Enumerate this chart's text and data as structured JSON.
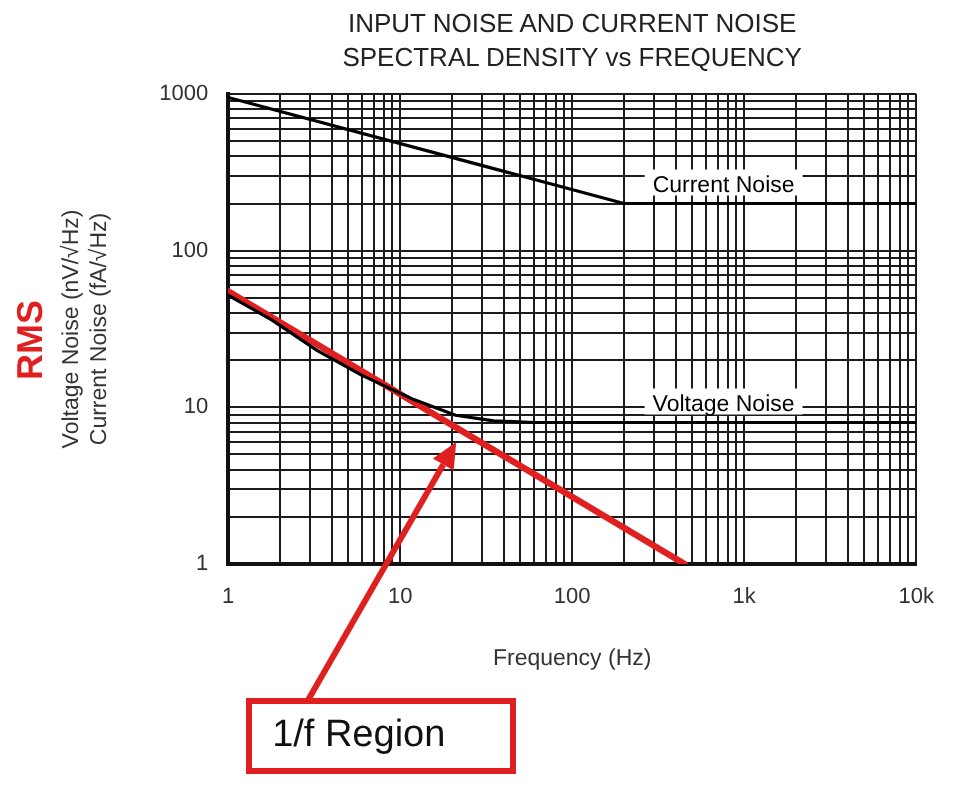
{
  "chart_data": {
    "type": "line",
    "title": "INPUT NOISE AND CURRENT NOISE\nSPECTRAL DENSITY vs FREQUENCY",
    "xlabel": "Frequency (Hz)",
    "ylabel": "Voltage Noise (nV/√Hz)\nCurrent Noise (fA/√Hz)",
    "log": "xy",
    "xlim": [
      1,
      10000
    ],
    "ylim": [
      1,
      1000
    ],
    "xticks": [
      1,
      {
        "value": 2,
        "label": null
      },
      {
        "value": 3,
        "label": null
      },
      {
        "value": 4,
        "label": null
      },
      {
        "value": 5,
        "label": null
      },
      {
        "value": 6,
        "label": null
      },
      {
        "value": 7,
        "label": null
      },
      {
        "value": 8,
        "label": null
      },
      {
        "value": 9,
        "label": null
      },
      10,
      {
        "value": 20,
        "label": null
      },
      {
        "value": 30,
        "label": null
      },
      {
        "value": 40,
        "label": null
      },
      {
        "value": 50,
        "label": null
      },
      {
        "value": 60,
        "label": null
      },
      {
        "value": 70,
        "label": null
      },
      {
        "value": 80,
        "label": null
      },
      {
        "value": 90,
        "label": null
      },
      100,
      {
        "value": 200,
        "label": null
      },
      {
        "value": 300,
        "label": null
      },
      {
        "value": 400,
        "label": null
      },
      {
        "value": 500,
        "label": null
      },
      {
        "value": 600,
        "label": null
      },
      {
        "value": 700,
        "label": null
      },
      {
        "value": 800,
        "label": null
      },
      {
        "value": 900,
        "label": null
      },
      {
        "value": 1000,
        "label": "1k"
      },
      {
        "value": 2000,
        "label": null
      },
      {
        "value": 3000,
        "label": null
      },
      {
        "value": 4000,
        "label": null
      },
      {
        "value": 5000,
        "label": null
      },
      {
        "value": 6000,
        "label": null
      },
      {
        "value": 7000,
        "label": null
      },
      {
        "value": 8000,
        "label": null
      },
      {
        "value": 9000,
        "label": null
      },
      {
        "value": 10000,
        "label": "10k"
      }
    ],
    "yticks": [
      1,
      {
        "value": 2,
        "label": null
      },
      {
        "value": 3,
        "label": null
      },
      {
        "value": 4,
        "label": null
      },
      {
        "value": 5,
        "label": null
      },
      {
        "value": 6,
        "label": null
      },
      {
        "value": 7,
        "label": null
      },
      {
        "value": 8,
        "label": null
      },
      {
        "value": 9,
        "label": null
      },
      10,
      {
        "value": 20,
        "label": null
      },
      {
        "value": 30,
        "label": null
      },
      {
        "value": 40,
        "label": null
      },
      {
        "value": 50,
        "label": null
      },
      {
        "value": 60,
        "label": null
      },
      {
        "value": 70,
        "label": null
      },
      {
        "value": 80,
        "label": null
      },
      {
        "value": 90,
        "label": null
      },
      100,
      {
        "value": 200,
        "label": null
      },
      {
        "value": 300,
        "label": null
      },
      {
        "value": 400,
        "label": null
      },
      {
        "value": 500,
        "label": null
      },
      {
        "value": 600,
        "label": null
      },
      {
        "value": 700,
        "label": null
      },
      {
        "value": 800,
        "label": null
      },
      {
        "value": 900,
        "label": null
      },
      1000
    ],
    "grid": true,
    "legend": false,
    "marker": "none",
    "line_style": "solid",
    "series": [
      {
        "name": "Current Noise",
        "color": "#000000",
        "x": [
          1,
          200,
          10000
        ],
        "values": [
          950,
          200,
          200
        ]
      },
      {
        "name": "Voltage Noise",
        "color": "#000000",
        "x": [
          1,
          1.8,
          3.3,
          6,
          12,
          21,
          35,
          60,
          10000
        ],
        "values": [
          52,
          36,
          23,
          16,
          11.2,
          8.9,
          8.2,
          8,
          8
        ]
      },
      {
        "color": "#e02020",
        "x": [
          1,
          450
        ],
        "values": [
          55,
          1
        ]
      }
    ],
    "annotations": [
      "RMS",
      "1/f Region"
    ]
  }
}
